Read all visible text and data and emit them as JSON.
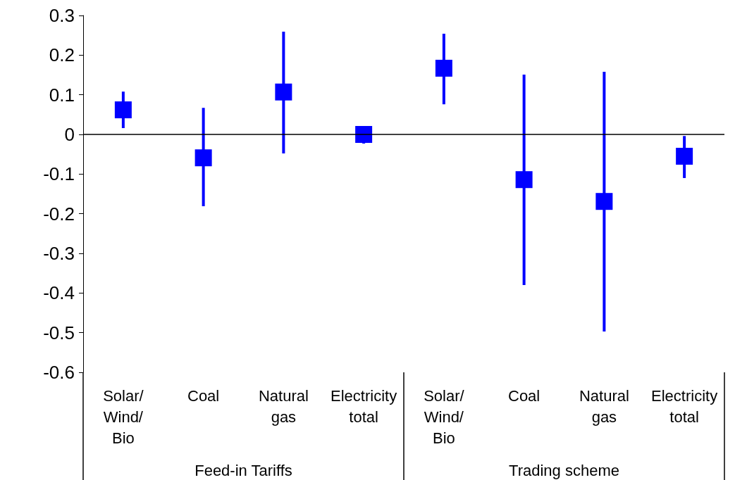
{
  "chart_data": {
    "type": "scatter",
    "marker": "square",
    "grid": false,
    "categories": [
      "Solar/\nWind/\nBio",
      "Coal",
      "Natural\ngas",
      "Electricity\ntotal",
      "Solar/\nWind/\nBio",
      "Coal",
      "Natural\ngas",
      "Electricity\ntotal"
    ],
    "series": [
      {
        "color": "#0000ff",
        "values": [
          0.062,
          -0.059,
          0.107,
          0,
          0.167,
          -0.114,
          -0.169,
          -0.055
        ],
        "errors": [
          [
            0.016,
            0.108
          ],
          [
            -0.181,
            0.067
          ],
          [
            -0.048,
            0.259
          ],
          [
            -0.023,
            0.003
          ],
          [
            0.076,
            0.254
          ],
          [
            -0.38,
            0.151
          ],
          [
            -0.497,
            0.158
          ],
          [
            -0.11,
            -0.004
          ]
        ]
      }
    ],
    "ylim": [
      -0.6,
      0.3
    ],
    "yticks": [
      -0.6,
      -0.5,
      -0.4,
      -0.3,
      -0.2,
      -0.1,
      0,
      0.1,
      0.2,
      0.3
    ],
    "ref_lines": [
      {
        "axis": "y",
        "value": 0,
        "color": "#000000"
      }
    ],
    "annotations": [
      "Feed-in Tariffs",
      "Trading scheme"
    ]
  }
}
